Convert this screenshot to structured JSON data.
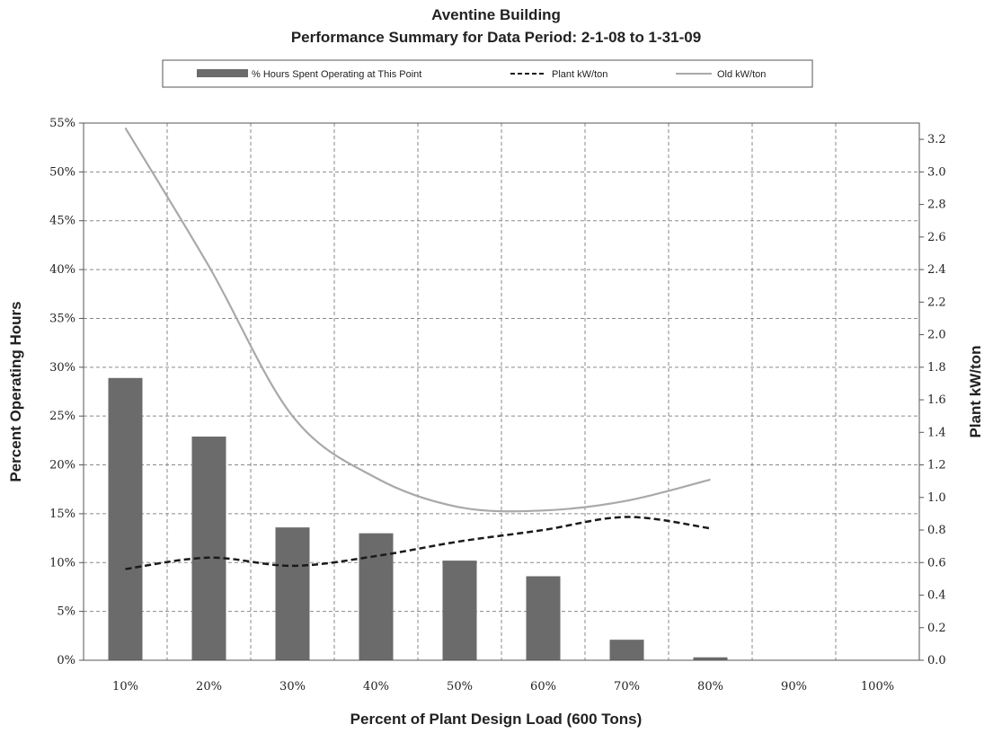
{
  "chart_data": {
    "type": "bar",
    "title": "Aventine Building",
    "subtitle": "Performance Summary for Data Period: 2-1-08 to 1-31-09",
    "xlabel": "Percent of Plant Design Load (600 Tons)",
    "ylabel": "Percent Operating Hours",
    "y2label": "Plant kW/ton",
    "categories": [
      "10%",
      "20%",
      "30%",
      "40%",
      "50%",
      "60%",
      "70%",
      "80%",
      "90%",
      "100%"
    ],
    "ylim": [
      0,
      55
    ],
    "y_ticks": [
      0,
      5,
      10,
      15,
      20,
      25,
      30,
      35,
      40,
      45,
      50,
      55
    ],
    "y_tick_labels": [
      "0%",
      "5%",
      "10%",
      "15%",
      "20%",
      "25%",
      "30%",
      "35%",
      "40%",
      "45%",
      "50%",
      "55%"
    ],
    "y2lim": [
      0,
      3.3
    ],
    "y2_ticks": [
      0,
      0.2,
      0.4,
      0.6,
      0.8,
      1.0,
      1.2,
      1.4,
      1.6,
      1.8,
      2.0,
      2.2,
      2.4,
      2.6,
      2.8,
      3.0,
      3.2
    ],
    "y2_tick_labels": [
      "0.0",
      "0.2",
      "0.4",
      "0.6",
      "0.8",
      "1.0",
      "1.2",
      "1.4",
      "1.6",
      "1.8",
      "2.0",
      "2.2",
      "2.4",
      "2.6",
      "2.8",
      "3.0",
      "3.2"
    ],
    "grid": true,
    "legend_position": "top",
    "series": [
      {
        "name": "% Hours Spent Operating at This Point",
        "type": "bar",
        "axis": "left",
        "color": "#6b6b6b",
        "values": [
          28.9,
          22.9,
          13.6,
          13.0,
          10.2,
          8.6,
          2.1,
          0.3,
          0,
          0
        ]
      },
      {
        "name": "Plant kW/ton",
        "type": "line",
        "axis": "right",
        "style": "dashed",
        "color": "#1a1a1a",
        "values": [
          0.56,
          0.63,
          0.58,
          0.64,
          0.73,
          0.8,
          0.88,
          0.81,
          null,
          null
        ]
      },
      {
        "name": "Old kW/ton",
        "type": "line",
        "axis": "right",
        "style": "solid",
        "color": "#a9a9a9",
        "values": [
          3.27,
          2.42,
          1.5,
          1.12,
          0.94,
          0.92,
          0.98,
          1.11,
          null,
          null
        ]
      }
    ]
  }
}
